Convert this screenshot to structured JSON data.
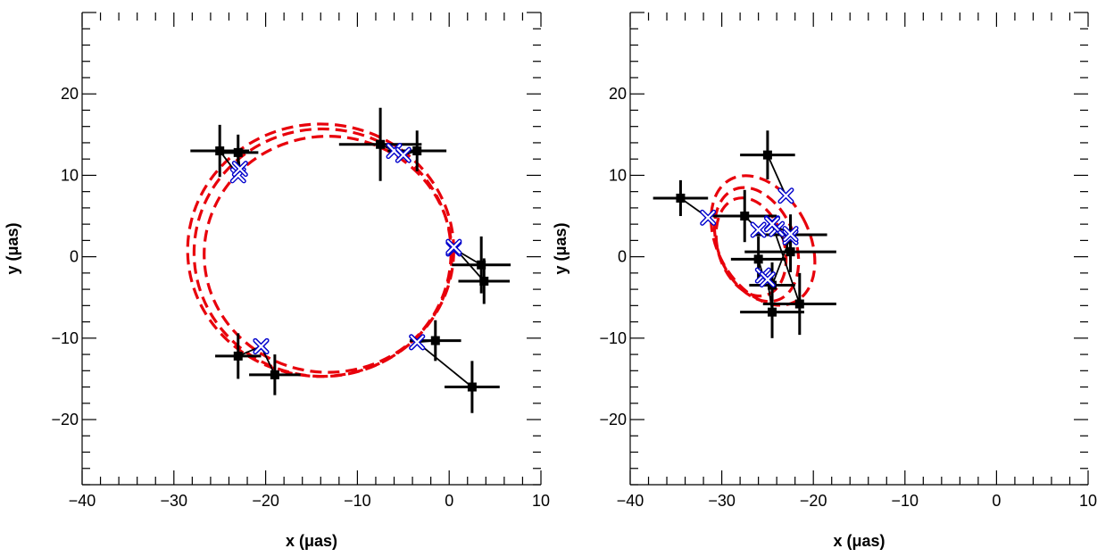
{
  "chart_data": [
    {
      "type": "scatter",
      "xlabel": "x (μas)",
      "ylabel": "y (μas)",
      "xlim": [
        -40,
        10
      ],
      "ylim": [
        -28,
        30
      ],
      "xticks": [
        -40,
        -30,
        -20,
        -10,
        0,
        10
      ],
      "yticks": [
        -20,
        -10,
        0,
        10,
        20
      ],
      "xtick_labels": [
        "−40",
        "−30",
        "−20",
        "−10",
        "0",
        "10"
      ],
      "ytick_labels": [
        "−20",
        "−10",
        "0",
        "10",
        "20"
      ],
      "grid": false,
      "colors": {
        "data": "#000000",
        "model": "#0000cc",
        "ellipse": "#e8000b"
      },
      "series": [
        {
          "role": "data",
          "x": [
            -25,
            -23,
            -7.5,
            -3.5,
            3.5,
            3.8,
            -1.5,
            2.5,
            -23,
            -19
          ],
          "y": [
            13,
            12.8,
            13.8,
            13,
            -1,
            -3,
            -10.3,
            -16,
            -12.2,
            -14.5
          ],
          "xerr": [
            3.2,
            2.2,
            4.5,
            3.2,
            3.2,
            2.8,
            2.8,
            3,
            2.5,
            2.8
          ],
          "yerr": [
            3.2,
            2.2,
            4.5,
            2.5,
            3.5,
            2.8,
            2.5,
            3.2,
            2.8,
            2.5
          ]
        },
        {
          "role": "model",
          "x": [
            -23,
            -22.8,
            -6,
            -5,
            0.5,
            0.5,
            -3.5,
            -3.5,
            -20.5,
            -20.5
          ],
          "y": [
            10,
            10.8,
            13,
            12.5,
            1,
            1.2,
            -10.5,
            -10.5,
            -11,
            -11
          ]
        }
      ],
      "ellipses": [
        {
          "cx": -14,
          "cy": 0.8,
          "rx": 14.5,
          "ry": 15.5,
          "angle": 0
        },
        {
          "cx": -13.8,
          "cy": 0.5,
          "rx": 14,
          "ry": 15.2,
          "angle": 0
        },
        {
          "cx": -13.2,
          "cy": 0.3,
          "rx": 13.5,
          "ry": 14.5,
          "angle": 0
        }
      ]
    },
    {
      "type": "scatter",
      "xlabel": "x (μas)",
      "ylabel": "y (μas)",
      "xlim": [
        -40,
        10
      ],
      "ylim": [
        -28,
        30
      ],
      "xticks": [
        -40,
        -30,
        -20,
        -10,
        0,
        10
      ],
      "yticks": [
        -20,
        -10,
        0,
        10,
        20
      ],
      "xtick_labels": [
        "−40",
        "−30",
        "−20",
        "−10",
        "0",
        "10"
      ],
      "ytick_labels": [
        "−20",
        "−10",
        "0",
        "10",
        "20"
      ],
      "grid": false,
      "colors": {
        "data": "#000000",
        "model": "#0000cc",
        "ellipse": "#e8000b"
      },
      "series": [
        {
          "role": "data",
          "x": [
            -34.5,
            -25,
            -27.5,
            -22.5,
            -26,
            -22.5,
            -24.5,
            -24.5,
            -21.5,
            -22.5
          ],
          "y": [
            7.2,
            12.5,
            5,
            2.7,
            -0.3,
            0.6,
            -3.5,
            -6.8,
            -5.8,
            2.7
          ],
          "xerr": [
            3,
            3,
            3.5,
            4,
            3,
            5,
            2.5,
            3.5,
            4,
            2.5
          ],
          "yerr": [
            2.2,
            3,
            3.2,
            2.5,
            2.8,
            2.5,
            2.8,
            3.2,
            3.8,
            2.2
          ]
        },
        {
          "role": "model",
          "x": [
            -31.5,
            -23,
            -26,
            -24.5,
            -25.5,
            -24,
            -22.5,
            -25,
            -24.5,
            -22.5
          ],
          "y": [
            4.8,
            7.5,
            3.3,
            4.1,
            -2.3,
            3.4,
            2.4,
            -2.8,
            4,
            2.8
          ]
        }
      ],
      "ellipses": [
        {
          "cx": -25.5,
          "cy": 2,
          "rx": 5,
          "ry": 8.5,
          "angle": -28
        },
        {
          "cx": -26.2,
          "cy": 1.5,
          "rx": 4.2,
          "ry": 7.3,
          "angle": -22
        },
        {
          "cx": -26.8,
          "cy": 1.2,
          "rx": 3.6,
          "ry": 6.2,
          "angle": -18
        }
      ]
    }
  ]
}
